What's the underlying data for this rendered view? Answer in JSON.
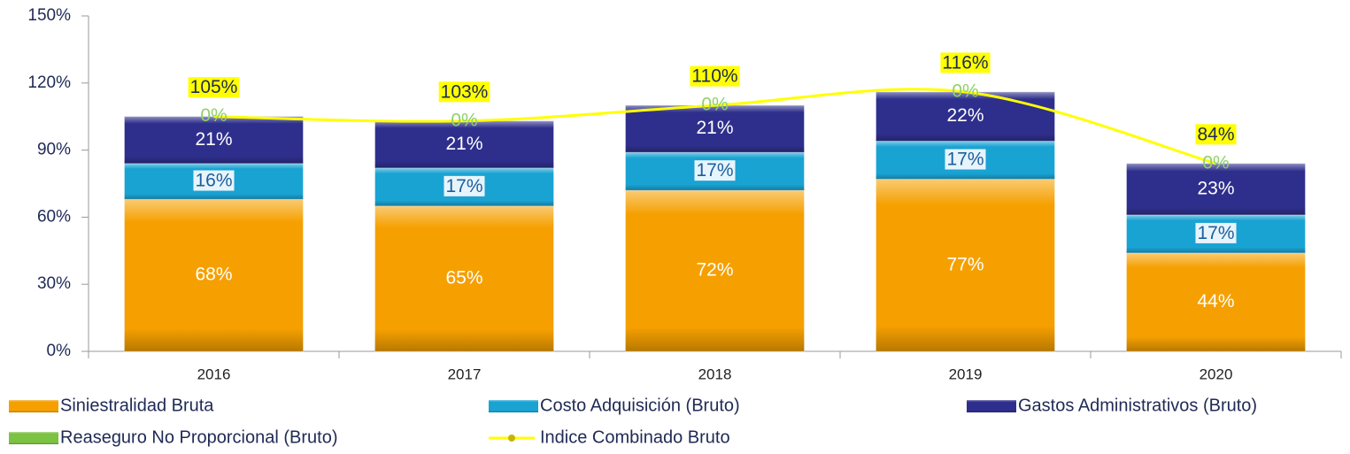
{
  "chart_data": {
    "type": "stacked_bar_line",
    "categories": [
      "2016",
      "2017",
      "2018",
      "2019",
      "2020"
    ],
    "series": [
      {
        "name": "Siniestralidad Bruta",
        "color": "#f5a000",
        "label_color": "#ffffff",
        "values": [
          68,
          65,
          72,
          77,
          44
        ],
        "value_labels": [
          "68%",
          "65%",
          "72%",
          "77%",
          "44%"
        ]
      },
      {
        "name": "Costo Adquisición (Bruto)",
        "color": "#19a3d3",
        "label_color": "#1b5f9e",
        "values": [
          16,
          17,
          17,
          17,
          17
        ],
        "value_labels": [
          "16%",
          "17%",
          "17%",
          "17%",
          "17%"
        ]
      },
      {
        "name": "Gastos Administrativos (Bruto)",
        "color": "#2e2f8c",
        "label_color": "#ffffff",
        "values": [
          21,
          21,
          21,
          22,
          23
        ],
        "value_labels": [
          "21%",
          "21%",
          "21%",
          "22%",
          "23%"
        ]
      },
      {
        "name": "Reaseguro No Proporcional (Bruto)",
        "color": "#7cc243",
        "label_color": "#8fd16a",
        "values": [
          0,
          0,
          0,
          0,
          0
        ],
        "value_labels": [
          "0%",
          "0%",
          "0%",
          "0%",
          "0%"
        ]
      },
      {
        "name": "Indice Combinado Bruto",
        "type": "line",
        "color": "#ffff00",
        "label_color": "#1f2a55",
        "values": [
          105,
          103,
          110,
          116,
          84
        ],
        "value_labels": [
          "105%",
          "103%",
          "110%",
          "116%",
          "84%"
        ]
      }
    ],
    "ylim": [
      0,
      150
    ],
    "yticks": [
      {
        "value": 0,
        "label": "0%"
      },
      {
        "value": 30,
        "label": "30%"
      },
      {
        "value": 60,
        "label": "60%"
      },
      {
        "value": 90,
        "label": "90%"
      },
      {
        "value": 120,
        "label": "120%"
      },
      {
        "value": 150,
        "label": "150%"
      }
    ]
  }
}
